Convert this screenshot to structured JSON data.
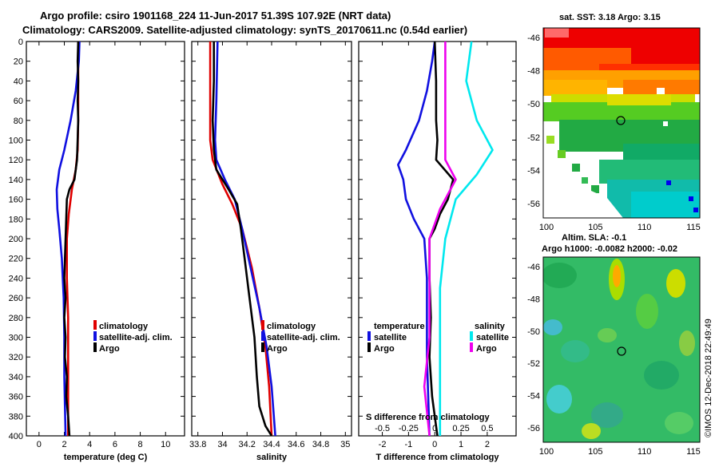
{
  "header": {
    "line1": "Argo profile: csiro 1901168_224 11-Jun-2017 51.39S 107.92E (NRT data)",
    "line2": "Climatology: CARS2009. Satellite-adjusted climatology: synTS_20170611.nc (0.54d earlier)"
  },
  "colors": {
    "climatology": "#e00000",
    "satellite": "#1010e0",
    "argo": "#000000",
    "sal_satellite": "#00e8ee",
    "sal_argo": "#ee00ee"
  },
  "chart_data": [
    {
      "type": "line",
      "id": "temperature",
      "xlabel": "temperature (deg C)",
      "ylabel": "",
      "xlim": [
        -1,
        11.5
      ],
      "ylim": [
        400,
        0
      ],
      "xticks": [
        0,
        2,
        4,
        6,
        8,
        10
      ],
      "xtick_labels": [
        "0",
        "2",
        "4",
        "6",
        "8",
        "10"
      ],
      "yticks": [
        0,
        20,
        40,
        60,
        80,
        100,
        120,
        140,
        160,
        180,
        200,
        220,
        240,
        260,
        280,
        300,
        320,
        340,
        360,
        380,
        400
      ],
      "ytick_labels": [
        "0",
        "20",
        "40",
        "60",
        "80",
        "100",
        "120",
        "140",
        "160",
        "180",
        "200",
        "220",
        "240",
        "260",
        "280",
        "300",
        "320",
        "340",
        "360",
        "380",
        "400"
      ],
      "legend": [
        "climatology",
        "satellite-adj. clim.",
        "Argo"
      ],
      "series": [
        {
          "name": "climatology",
          "color": "#e00000",
          "points": [
            [
              3.1,
              0
            ],
            [
              3.1,
              40
            ],
            [
              3.1,
              80
            ],
            [
              3.05,
              110
            ],
            [
              2.9,
              130
            ],
            [
              2.6,
              150
            ],
            [
              2.35,
              175
            ],
            [
              2.2,
              200
            ],
            [
              2.2,
              240
            ],
            [
              2.3,
              280
            ],
            [
              2.3,
              320
            ],
            [
              2.3,
              360
            ],
            [
              2.3,
              400
            ]
          ]
        },
        {
          "name": "satellite-adj. clim.",
          "color": "#1010e0",
          "points": [
            [
              3.2,
              0
            ],
            [
              3.15,
              20
            ],
            [
              2.9,
              50
            ],
            [
              2.5,
              80
            ],
            [
              2.0,
              110
            ],
            [
              1.6,
              130
            ],
            [
              1.4,
              150
            ],
            [
              1.45,
              170
            ],
            [
              1.6,
              190
            ],
            [
              1.8,
              220
            ],
            [
              1.95,
              260
            ],
            [
              2.0,
              300
            ],
            [
              2.0,
              340
            ],
            [
              2.05,
              370
            ],
            [
              2.1,
              400
            ]
          ]
        },
        {
          "name": "Argo",
          "color": "#000000",
          "points": [
            [
              3.1,
              0
            ],
            [
              3.05,
              20
            ],
            [
              3.1,
              40
            ],
            [
              3.05,
              60
            ],
            [
              3.1,
              80
            ],
            [
              3.05,
              100
            ],
            [
              3.0,
              120
            ],
            [
              2.8,
              140
            ],
            [
              2.4,
              150
            ],
            [
              2.2,
              160
            ],
            [
              2.15,
              180
            ],
            [
              2.1,
              200
            ],
            [
              2.05,
              220
            ],
            [
              2.0,
              240
            ],
            [
              2.1,
              260
            ],
            [
              2.0,
              280
            ],
            [
              2.1,
              300
            ],
            [
              2.05,
              320
            ],
            [
              2.2,
              340
            ],
            [
              2.15,
              360
            ],
            [
              2.3,
              380
            ],
            [
              2.4,
              400
            ]
          ]
        }
      ]
    },
    {
      "type": "line",
      "id": "salinity",
      "xlabel": "salinity",
      "ylim": [
        400,
        0
      ],
      "xlim": [
        33.75,
        35.05
      ],
      "xticks": [
        33.8,
        34,
        34.2,
        34.4,
        34.6,
        34.8,
        35
      ],
      "xtick_labels": [
        "33.8",
        "34",
        "34.2",
        "34.4",
        "34.6",
        "34.8",
        "35"
      ],
      "legend": [
        "climatology",
        "satellite-adj. clim.",
        "Argo"
      ],
      "series": [
        {
          "name": "climatology",
          "color": "#e00000",
          "points": [
            [
              33.9,
              0
            ],
            [
              33.9,
              60
            ],
            [
              33.9,
              100
            ],
            [
              33.92,
              120
            ],
            [
              34.0,
              145
            ],
            [
              34.08,
              165
            ],
            [
              34.16,
              190
            ],
            [
              34.24,
              230
            ],
            [
              34.3,
              270
            ],
            [
              34.35,
              310
            ],
            [
              34.38,
              350
            ],
            [
              34.4,
              400
            ]
          ]
        },
        {
          "name": "satellite-adj. clim.",
          "color": "#1010e0",
          "points": [
            [
              33.96,
              0
            ],
            [
              33.95,
              60
            ],
            [
              33.94,
              100
            ],
            [
              33.95,
              120
            ],
            [
              34.02,
              140
            ],
            [
              34.1,
              160
            ],
            [
              34.16,
              190
            ],
            [
              34.23,
              230
            ],
            [
              34.3,
              270
            ],
            [
              34.36,
              310
            ],
            [
              34.4,
              350
            ],
            [
              34.43,
              400
            ]
          ]
        },
        {
          "name": "Argo",
          "color": "#000000",
          "points": [
            [
              33.93,
              0
            ],
            [
              33.93,
              40
            ],
            [
              33.92,
              80
            ],
            [
              33.93,
              110
            ],
            [
              33.95,
              130
            ],
            [
              34.05,
              150
            ],
            [
              34.12,
              165
            ],
            [
              34.15,
              190
            ],
            [
              34.18,
              220
            ],
            [
              34.22,
              260
            ],
            [
              34.26,
              300
            ],
            [
              34.28,
              340
            ],
            [
              34.3,
              370
            ],
            [
              34.35,
              390
            ],
            [
              34.4,
              400
            ]
          ]
        }
      ]
    },
    {
      "type": "line",
      "id": "difference",
      "xlabel": "T difference from climatology",
      "xlabel2": "S difference from climatology",
      "ylim": [
        400,
        0
      ],
      "xlim": [
        -2.9,
        3.1
      ],
      "xticks": [
        -2,
        -1,
        0,
        1,
        2
      ],
      "xtick_labels": [
        "-2",
        "-1",
        "0",
        "1",
        "2"
      ],
      "xticks2": [
        -0.5,
        -0.25,
        0,
        0.25,
        0.5
      ],
      "xtick2_labels": [
        "-0.5",
        "-0.25",
        "0",
        "0.25",
        "0.5"
      ],
      "legend_temperature_title": "temperature",
      "legend_salinity_title": "salinity",
      "legend_temperature": [
        "satellite",
        "Argo"
      ],
      "legend_salinity": [
        "satellite",
        "Argo"
      ],
      "series": [
        {
          "name": "T satellite",
          "color": "#1010e0",
          "points": [
            [
              0.0,
              0
            ],
            [
              -0.1,
              20
            ],
            [
              -0.3,
              50
            ],
            [
              -0.6,
              80
            ],
            [
              -1.1,
              110
            ],
            [
              -1.4,
              125
            ],
            [
              -1.2,
              140
            ],
            [
              -1.1,
              160
            ],
            [
              -0.8,
              180
            ],
            [
              -0.4,
              200
            ],
            [
              -0.3,
              240
            ],
            [
              -0.3,
              280
            ],
            [
              -0.3,
              320
            ],
            [
              -0.25,
              360
            ],
            [
              -0.2,
              400
            ]
          ]
        },
        {
          "name": "T Argo",
          "color": "#000000",
          "points": [
            [
              0.0,
              0
            ],
            [
              0.05,
              40
            ],
            [
              0.05,
              80
            ],
            [
              0.1,
              100
            ],
            [
              0.05,
              120
            ],
            [
              0.7,
              140
            ],
            [
              0.5,
              160
            ],
            [
              0.2,
              175
            ],
            [
              0.0,
              190
            ],
            [
              -0.2,
              200
            ],
            [
              -0.2,
              240
            ],
            [
              -0.15,
              280
            ],
            [
              -0.2,
              320
            ],
            [
              -0.1,
              360
            ],
            [
              0.1,
              400
            ]
          ]
        },
        {
          "name": "S satellite",
          "color": "#00e8ee",
          "points": [
            [
              0.35,
              0
            ],
            [
              0.3,
              40
            ],
            [
              0.4,
              80
            ],
            [
              0.55,
              110
            ],
            [
              0.4,
              135
            ],
            [
              0.2,
              160
            ],
            [
              0.1,
              200
            ],
            [
              0.05,
              250
            ],
            [
              0.05,
              300
            ],
            [
              0.05,
              350
            ],
            [
              0.05,
              400
            ]
          ]
        },
        {
          "name": "S Argo",
          "color": "#ee00ee",
          "points": [
            [
              0.1,
              0
            ],
            [
              0.1,
              80
            ],
            [
              0.1,
              120
            ],
            [
              0.2,
              140
            ],
            [
              0.05,
              170
            ],
            [
              -0.05,
              200
            ],
            [
              -0.05,
              250
            ],
            [
              -0.05,
              300
            ],
            [
              -0.1,
              350
            ],
            [
              -0.05,
              400
            ]
          ]
        }
      ]
    }
  ],
  "maps": {
    "sst": {
      "title": "sat. SST: 3.18 Argo: 3.15",
      "yticks": [
        "-46",
        "-48",
        "-50",
        "-52",
        "-54",
        "-56"
      ],
      "xticks": [
        "100",
        "105",
        "110",
        "115"
      ]
    },
    "sla": {
      "title1": "Altim. SLA: -0.1",
      "title2": "Argo h1000: -0.0082 h2000: -0.02",
      "yticks": [
        "-46",
        "-48",
        "-50",
        "-52",
        "-54",
        "-56"
      ],
      "xticks": [
        "100",
        "105",
        "110",
        "115"
      ]
    }
  },
  "watermark": "©IMOS 12-Dec-2018 22:49:49"
}
